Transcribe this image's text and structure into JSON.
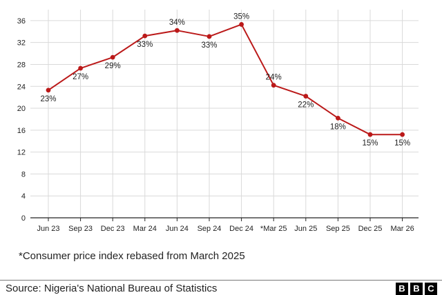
{
  "chart_data": {
    "type": "line",
    "categories": [
      "Jun 23",
      "Sep 23",
      "Dec 23",
      "Mar 24",
      "Jun 24",
      "Sep 24",
      "Dec 24",
      "*Mar 25",
      "Jun 25",
      "Sep 25",
      "Dec 25",
      "Mar 26"
    ],
    "series": [
      {
        "values": [
          23.3,
          27.3,
          29.3,
          33.2,
          34.2,
          33.1,
          35.3,
          24.2,
          22.2,
          18.2,
          15.2,
          15.2
        ],
        "labels": [
          "23%",
          "27%",
          "29%",
          "33%",
          "34%",
          "33%",
          "35%",
          "24%",
          "22%",
          "18%",
          "15%",
          "15%"
        ],
        "label_position": [
          "below",
          "below",
          "below",
          "below",
          "above",
          "below",
          "above",
          "above",
          "below",
          "below",
          "below",
          "below"
        ],
        "color": "#bb1919"
      }
    ],
    "yticks": [
      0,
      4,
      8,
      12,
      16,
      20,
      24,
      28,
      32,
      36
    ],
    "ylim": [
      0,
      38
    ],
    "grid": true
  },
  "footnote": "*Consumer price index rebased from March 2025",
  "source": "Source: Nigeria's National Bureau of Statistics",
  "logo_letters": [
    "B",
    "B",
    "C"
  ],
  "colors": {
    "line": "#bb1919",
    "grid": "#d9d9d9",
    "axis": "#222222",
    "text": "#222222"
  }
}
